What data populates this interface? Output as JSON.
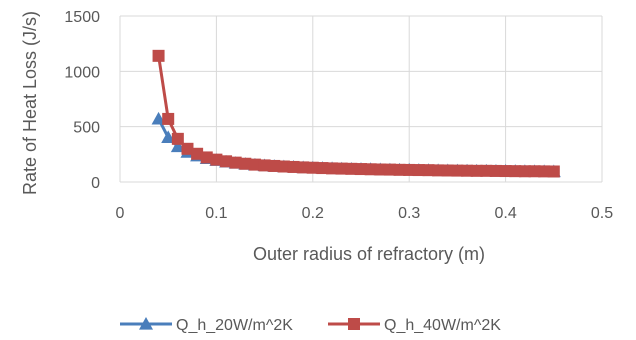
{
  "chart_data": {
    "type": "line",
    "title": "",
    "xlabel": "Outer radius of refractory  (m)",
    "ylabel": "Rate of Heat Loss  (J/s)",
    "xlim": [
      0,
      0.5
    ],
    "ylim": [
      0,
      1500
    ],
    "x_ticks": [
      "0",
      "0.1",
      "0.2",
      "0.3",
      "0.4",
      "0.5"
    ],
    "y_ticks": [
      "0",
      "500",
      "1000",
      "1500"
    ],
    "grid": true,
    "legend_position": "bottom",
    "series": [
      {
        "name": "Q_h_20W/m^2K",
        "color": "#4a7ebb",
        "marker": "triangle",
        "x": [
          0.04,
          0.05,
          0.06,
          0.07,
          0.08,
          0.09,
          0.1,
          0.11,
          0.12,
          0.13,
          0.14,
          0.15,
          0.16,
          0.17,
          0.18,
          0.19,
          0.2,
          0.21,
          0.22,
          0.23,
          0.24,
          0.25,
          0.26,
          0.27,
          0.28,
          0.29,
          0.3,
          0.31,
          0.32,
          0.33,
          0.34,
          0.35,
          0.36,
          0.37,
          0.38,
          0.39,
          0.4,
          0.41,
          0.42,
          0.43,
          0.44,
          0.45
        ],
        "y": [
          570,
          403,
          320,
          270,
          237,
          213,
          196,
          182,
          171,
          162,
          155,
          149,
          143,
          139,
          135,
          131,
          128,
          125,
          123,
          120,
          118,
          116,
          115,
          113,
          111,
          110,
          109,
          107,
          106,
          105,
          104,
          103,
          102,
          101,
          100,
          99,
          99,
          98,
          97,
          96,
          96,
          95
        ]
      },
      {
        "name": "Q_h_40W/m^2K",
        "color": "#be4b48",
        "marker": "square",
        "x": [
          0.04,
          0.05,
          0.06,
          0.07,
          0.08,
          0.09,
          0.1,
          0.11,
          0.12,
          0.13,
          0.14,
          0.15,
          0.16,
          0.17,
          0.18,
          0.19,
          0.2,
          0.21,
          0.22,
          0.23,
          0.24,
          0.25,
          0.26,
          0.27,
          0.28,
          0.29,
          0.3,
          0.31,
          0.32,
          0.33,
          0.34,
          0.35,
          0.36,
          0.37,
          0.38,
          0.39,
          0.4,
          0.41,
          0.42,
          0.43,
          0.44,
          0.45
        ],
        "y": [
          1140,
          570,
          390,
          300,
          255,
          222,
          202,
          187,
          175,
          165,
          157,
          150,
          145,
          140,
          136,
          132,
          129,
          126,
          123,
          121,
          119,
          117,
          115,
          113,
          112,
          110,
          109,
          108,
          107,
          105,
          104,
          103,
          102,
          101,
          101,
          100,
          99,
          98,
          97,
          97,
          96,
          95
        ]
      }
    ]
  }
}
